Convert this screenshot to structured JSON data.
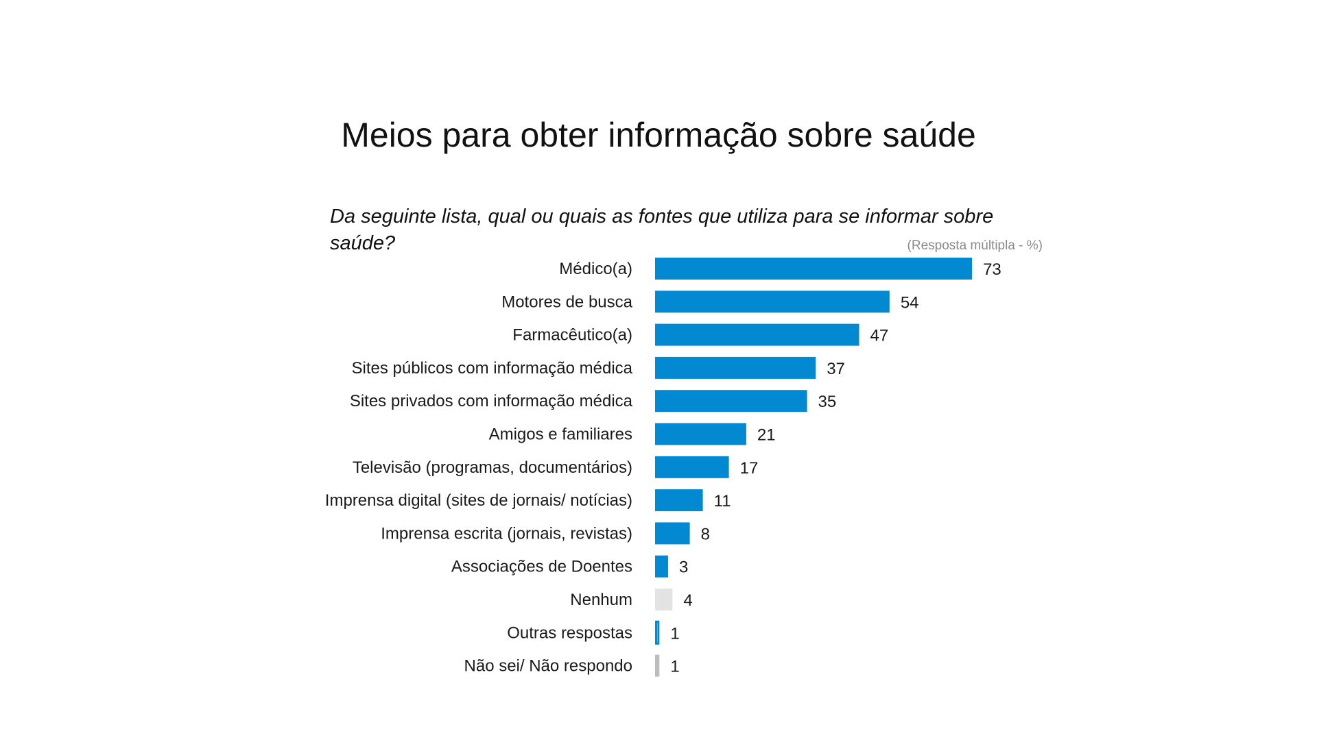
{
  "title": "Meios para obter informação sobre saúde",
  "question": "Da seguinte lista, qual ou quais as fontes que utiliza para se informar sobre saúde?",
  "note": "(Resposta múltipla - %)",
  "colors": {
    "main": "#0289D1",
    "nenhum": "#E3E3E3",
    "outras_outline": "#0289D1",
    "nao_sei": "#BDBDBD"
  },
  "chart_data": {
    "type": "bar",
    "orientation": "horizontal",
    "title": "Meios para obter informação sobre saúde",
    "xlim": [
      0,
      80
    ],
    "grid": false,
    "categories": [
      "Médico(a)",
      "Motores de busca",
      "Farmacêutico(a)",
      "Sites públicos com informação médica",
      "Sites privados com informação médica",
      "Amigos e familiares",
      "Televisão (programas, documentários)",
      "Imprensa digital (sites de jornais/ notícias)",
      "Imprensa escrita (jornais, revistas)",
      "Associações de Doentes",
      "Nenhum",
      "Outras respostas",
      "Não sei/ Não respondo"
    ],
    "values": [
      73,
      54,
      47,
      37,
      35,
      21,
      17,
      11,
      8,
      3,
      4,
      1,
      1
    ],
    "bar_styles": [
      "main",
      "main",
      "main",
      "main",
      "main",
      "main",
      "main",
      "main",
      "main",
      "main",
      "nenhum",
      "outline",
      "nao_sei"
    ]
  }
}
